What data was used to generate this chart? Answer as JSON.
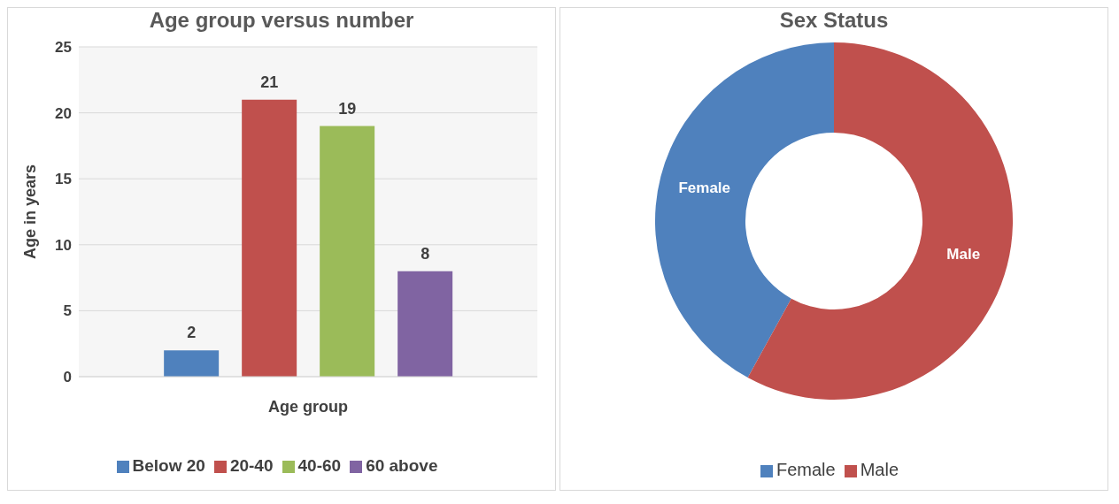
{
  "chart_data": [
    {
      "type": "bar",
      "title": "Age group versus number",
      "xlabel": "Age group",
      "ylabel": "Age in years",
      "categories": [
        null
      ],
      "series": [
        {
          "name": "Below 20",
          "color": "#4f81bd",
          "values": [
            2
          ]
        },
        {
          "name": "20-40",
          "color": "#c0504d",
          "values": [
            21
          ]
        },
        {
          "name": "40-60",
          "color": "#9bbb59",
          "values": [
            19
          ]
        },
        {
          "name": "60 above",
          "color": "#8064a2",
          "values": [
            8
          ]
        }
      ],
      "ylim": [
        0,
        25
      ],
      "yticks": [
        0,
        5,
        10,
        15,
        20,
        25
      ],
      "grid": "y",
      "legend": "bottom",
      "data_labels": true
    },
    {
      "type": "donut",
      "title": "Sex Status",
      "categories": [
        "Female",
        "Male"
      ],
      "values": [
        42,
        58
      ],
      "colors": [
        "#4f81bd",
        "#c0504d"
      ],
      "legend": "bottom"
    }
  ]
}
